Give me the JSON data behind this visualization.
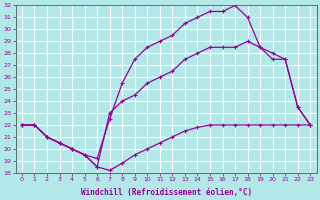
{
  "background_color": "#b3e8e8",
  "grid_color": "#ffffff",
  "line_color": "#990099",
  "xlabel": "Windchill (Refroidissement éolien,°C)",
  "xlim": [
    -0.5,
    23.5
  ],
  "ylim": [
    18,
    32
  ],
  "yticks": [
    18,
    19,
    20,
    21,
    22,
    23,
    24,
    25,
    26,
    27,
    28,
    29,
    30,
    31,
    32
  ],
  "xticks": [
    0,
    1,
    2,
    3,
    4,
    5,
    6,
    7,
    8,
    9,
    10,
    11,
    12,
    13,
    14,
    15,
    16,
    17,
    18,
    19,
    20,
    21,
    22,
    23
  ],
  "line1_x": [
    0,
    1,
    2,
    3,
    4,
    5,
    6,
    7,
    8,
    9,
    10,
    11,
    12,
    13,
    14,
    15,
    16,
    17,
    18,
    19,
    20,
    21,
    22,
    23
  ],
  "line1_y": [
    22,
    22,
    21,
    20.5,
    20,
    19.5,
    18.5,
    18.2,
    18.8,
    19.5,
    20,
    20.5,
    21,
    21.5,
    21.8,
    22,
    22,
    22,
    22,
    22,
    22,
    22,
    22,
    22
  ],
  "line2_x": [
    0,
    1,
    2,
    3,
    4,
    5,
    6,
    7,
    8,
    9,
    10,
    11,
    12,
    13,
    14,
    15,
    16,
    17,
    18,
    19,
    20,
    21,
    22,
    23
  ],
  "line2_y": [
    22,
    22,
    21,
    20.5,
    20,
    19.5,
    19.2,
    22.5,
    25.5,
    27.5,
    28.5,
    29,
    29.5,
    30.5,
    31,
    31.5,
    31.5,
    32,
    31,
    28.5,
    28,
    27.5,
    23.5,
    22
  ],
  "line3_x": [
    0,
    1,
    2,
    3,
    4,
    5,
    6,
    7,
    8,
    9,
    10,
    11,
    12,
    13,
    14,
    15,
    16,
    17,
    18,
    19,
    20,
    21,
    22,
    23
  ],
  "line3_y": [
    22,
    22,
    21,
    20.5,
    20,
    19.5,
    18.5,
    23,
    24,
    24.5,
    25.5,
    26,
    26.5,
    27.5,
    28,
    28.5,
    28.5,
    28.5,
    29,
    28.5,
    27.5,
    27.5,
    23.5,
    22
  ]
}
